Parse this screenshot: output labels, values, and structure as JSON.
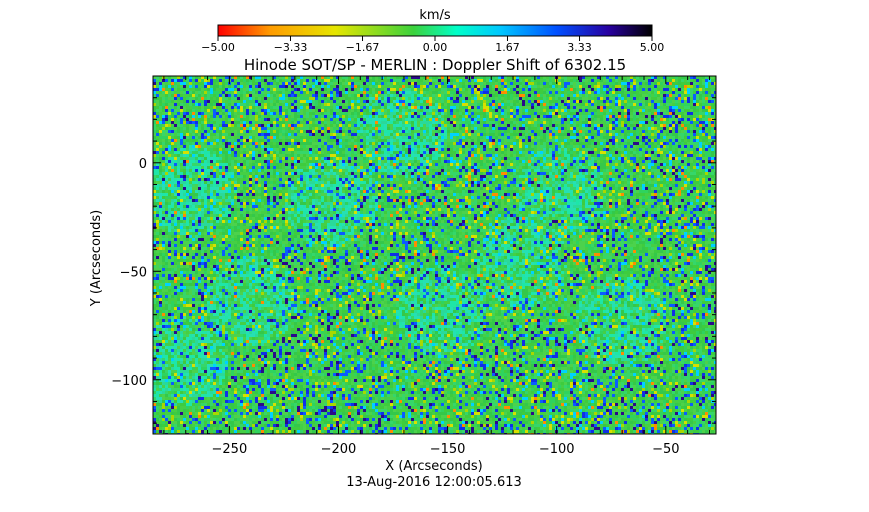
{
  "chart_data": {
    "type": "heatmap",
    "title": "Hinode SOT/SP - MERLIN : Doppler Shift of 6302.15",
    "xlabel": "X (Arcseconds)",
    "ylabel": "Y (Arcseconds)",
    "footer": "13-Aug-2016 12:00:05.613",
    "xlim": [
      -285,
      -27
    ],
    "ylim": [
      -125,
      40
    ],
    "x_ticks": [
      -250,
      -200,
      -150,
      -100,
      -50
    ],
    "x_tick_labels": [
      "−250",
      "−200",
      "−150",
      "−100",
      "−50"
    ],
    "y_ticks": [
      0,
      -50,
      -100
    ],
    "y_tick_labels": [
      "0",
      "−50",
      "−100"
    ],
    "colorbar": {
      "label": "km/s",
      "range": [
        -5.0,
        5.0
      ],
      "ticks": [
        -5.0,
        -3.33,
        -1.67,
        0.0,
        1.67,
        3.33,
        5.0
      ],
      "tick_labels": [
        "−5.00",
        "−3.33",
        "−1.67",
        "0.00",
        "1.67",
        "3.33",
        "5.00"
      ],
      "colormap": [
        "#ff0000",
        "#ff9b00",
        "#e6e600",
        "#3cd23c",
        "#00ffc8",
        "#00c8ff",
        "#0050ff",
        "#2800a0",
        "#000000"
      ]
    },
    "field_description": "noisy Doppler velocity field, mostly near 0 km/s (green) with speckled blue/yellow values",
    "grid": false
  }
}
